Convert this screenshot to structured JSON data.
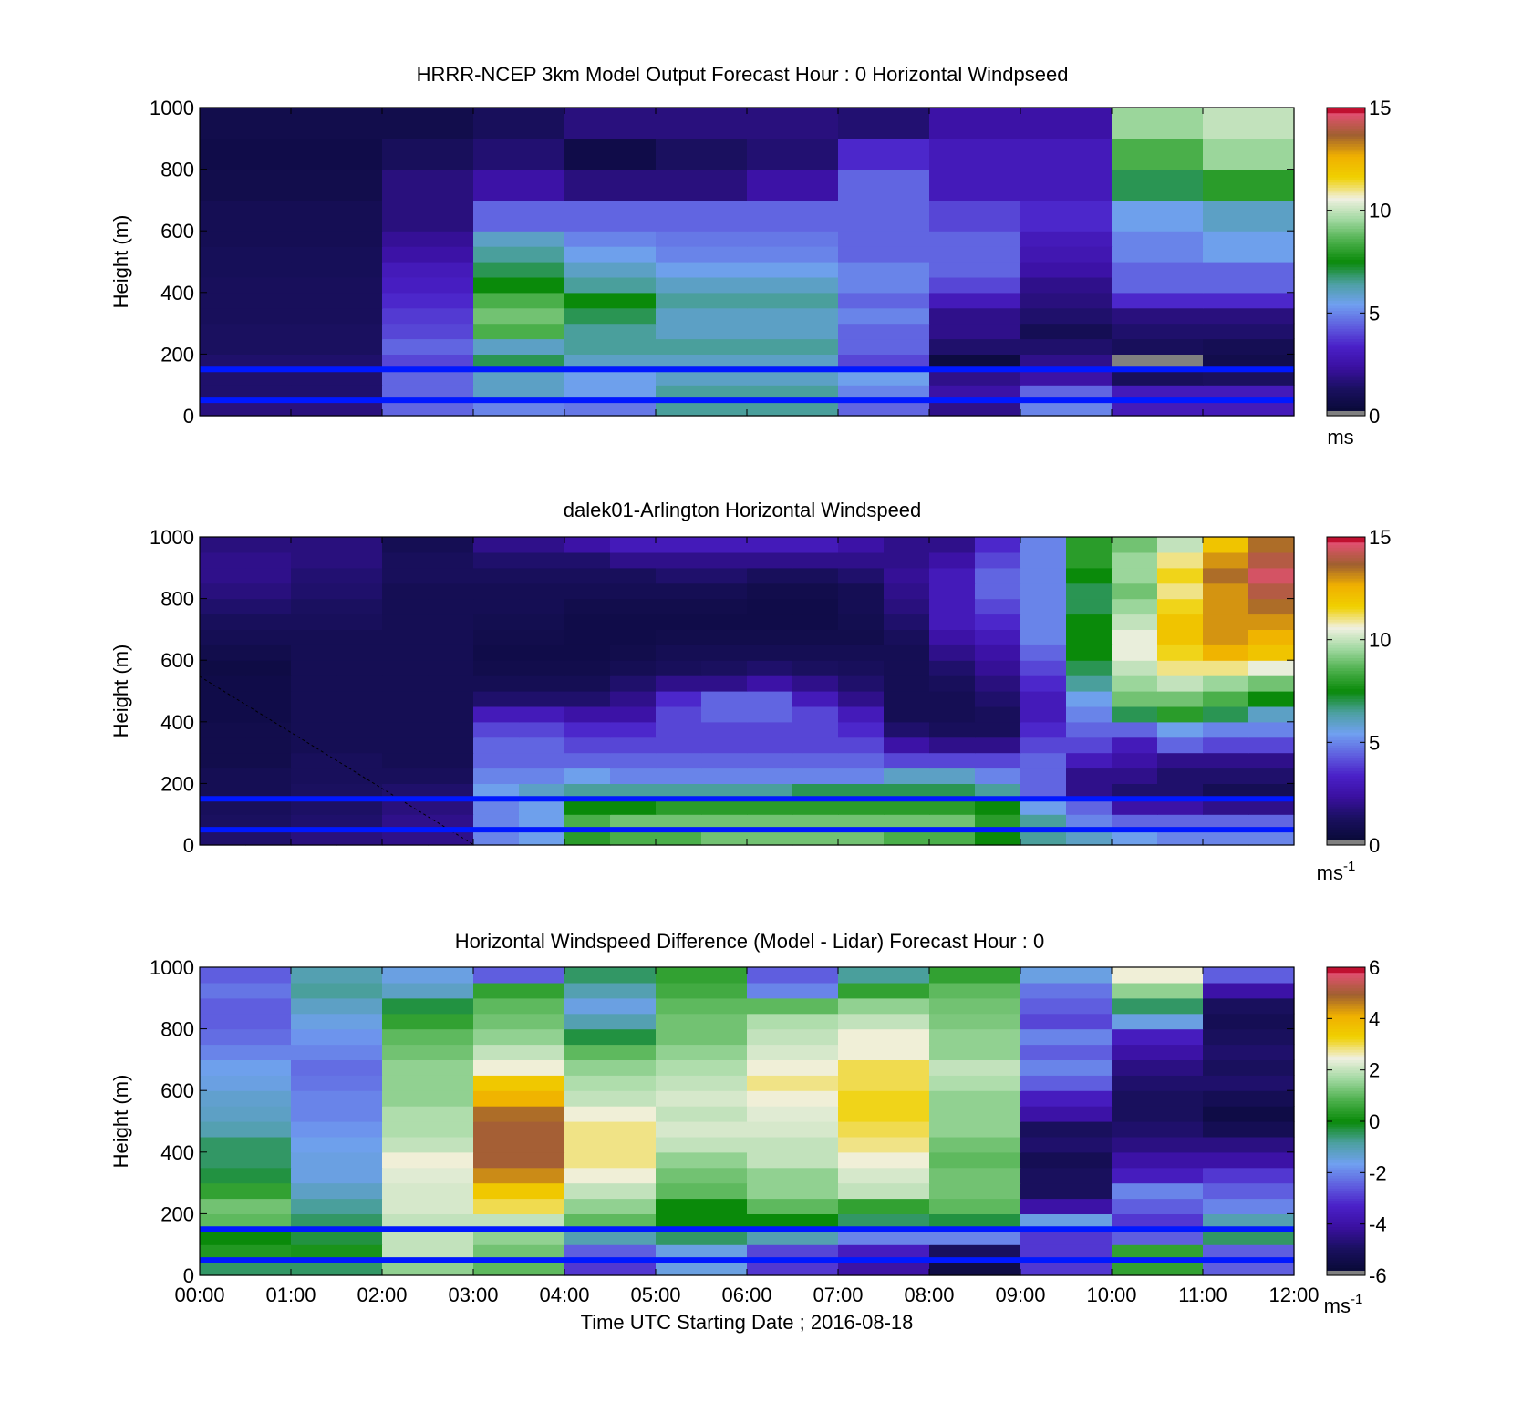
{
  "figure": {
    "xlabel": "Time UTC  Starting Date ; 2016-08-18",
    "x_tick_labels": [
      "00:00",
      "01:00",
      "02:00",
      "03:00",
      "04:00",
      "05:00",
      "06:00",
      "07:00",
      "08:00",
      "09:00",
      "10:00",
      "11:00",
      "12:00"
    ]
  },
  "colormap": [
    "#808080",
    "#0a0a3a",
    "#1a1060",
    "#3a10a0",
    "#4a20c8",
    "#6060e0",
    "#70a0f0",
    "#4ca0a0",
    "#0a8a0a",
    "#4cb04c",
    "#a0d8a0",
    "#f0f0e0",
    "#f0d000",
    "#f0b000",
    "#a06030",
    "#e05070",
    "#c01030"
  ],
  "chart_data": [
    {
      "type": "heatmap",
      "title": "HRRR-NCEP 3km Model Output   Forecast Hour : 0 Horizontal Windpseed",
      "ylabel": "Height (m)",
      "xlim": [
        0,
        12
      ],
      "ylim": [
        0,
        1000
      ],
      "y_ticks": [
        0,
        200,
        400,
        600,
        800,
        1000
      ],
      "colorbar": {
        "ticks": [
          0,
          5,
          10,
          15
        ],
        "range": [
          0,
          15
        ],
        "unit": "ms"
      },
      "overlay_lines_height_m": [
        50,
        150
      ],
      "overlay_line_color": "#0018ff",
      "time_bins_hours": [
        0,
        1,
        2,
        3,
        4,
        5,
        6,
        7,
        8,
        9,
        10,
        11,
        12
      ],
      "height_bins_m": [
        0,
        50,
        100,
        150,
        200,
        250,
        300,
        350,
        400,
        450,
        500,
        550,
        600,
        700,
        800,
        900,
        1000
      ],
      "values": [
        [
          1.8,
          1.8,
          4.5,
          5.0,
          4.8,
          6.5,
          6.5,
          4.5,
          2.0,
          5.0,
          3.0,
          3.0
        ],
        [
          1.5,
          1.5,
          4.5,
          6.0,
          5.5,
          6.5,
          6.5,
          5.0,
          2.5,
          4.5,
          3.0,
          3.0
        ],
        [
          1.5,
          1.5,
          4.5,
          6.0,
          5.5,
          6.0,
          6.0,
          5.5,
          2.0,
          2.5,
          1.2,
          1.3
        ],
        [
          1.5,
          1.5,
          4.0,
          7.0,
          6.0,
          6.0,
          6.0,
          4.0,
          0.5,
          2.0,
          0.3,
          0.8
        ],
        [
          1.3,
          1.3,
          4.5,
          6.0,
          6.5,
          6.5,
          6.5,
          4.5,
          1.5,
          1.5,
          1.2,
          1.0
        ],
        [
          1.3,
          1.3,
          4.0,
          8.5,
          6.5,
          6.0,
          6.0,
          4.5,
          2.0,
          1.0,
          1.5,
          1.5
        ],
        [
          1.2,
          1.2,
          3.8,
          9.0,
          7.0,
          6.0,
          6.0,
          5.0,
          2.0,
          1.5,
          1.8,
          1.8
        ],
        [
          1.2,
          1.2,
          3.5,
          8.5,
          7.5,
          6.5,
          6.5,
          4.5,
          3.0,
          1.8,
          3.5,
          3.5
        ],
        [
          1.2,
          1.2,
          3.2,
          7.5,
          6.5,
          6.0,
          6.0,
          5.0,
          4.0,
          2.0,
          4.5,
          4.5
        ],
        [
          1.1,
          1.1,
          3.0,
          7.0,
          6.0,
          5.5,
          5.5,
          5.0,
          4.5,
          2.5,
          4.5,
          4.5
        ],
        [
          1.1,
          1.1,
          2.5,
          6.5,
          5.5,
          5.0,
          5.0,
          4.5,
          4.5,
          2.8,
          5.0,
          5.5
        ],
        [
          1.0,
          1.0,
          2.2,
          6.0,
          5.0,
          4.8,
          4.8,
          4.5,
          4.5,
          3.0,
          5.0,
          5.5
        ],
        [
          1.0,
          1.0,
          1.8,
          4.5,
          4.5,
          4.5,
          4.5,
          4.5,
          4.0,
          3.5,
          5.5,
          6.0
        ],
        [
          0.8,
          0.8,
          1.8,
          2.5,
          1.8,
          1.8,
          2.5,
          4.5,
          3.0,
          3.0,
          7.0,
          8.0
        ],
        [
          0.7,
          0.7,
          1.2,
          1.6,
          0.7,
          1.3,
          1.6,
          3.5,
          3.0,
          3.0,
          8.5,
          9.5
        ],
        [
          0.8,
          0.8,
          0.8,
          1.2,
          1.8,
          1.8,
          1.8,
          1.6,
          2.5,
          2.5,
          9.5,
          10.0
        ]
      ]
    },
    {
      "type": "heatmap",
      "title": "dalek01-Arlington  Horizontal Windspeed",
      "ylabel": "Height (m)",
      "xlim": [
        0,
        12
      ],
      "ylim": [
        0,
        1000
      ],
      "y_ticks": [
        0,
        200,
        400,
        600,
        800,
        1000
      ],
      "colorbar": {
        "ticks": [
          0,
          5,
          10,
          15
        ],
        "range": [
          0,
          15
        ],
        "unit": "ms-1"
      },
      "overlay_lines_height_m": [
        50,
        150
      ],
      "overlay_line_color": "#0018ff",
      "time_bins_hours": [
        0,
        0.5,
        1,
        1.5,
        2,
        2.5,
        3,
        3.5,
        4,
        4.5,
        5,
        5.5,
        6,
        6.5,
        7,
        7.5,
        8,
        8.5,
        9,
        9.5,
        10,
        10.5,
        11,
        11.5,
        12
      ],
      "height_bins_m": [
        0,
        50,
        100,
        150,
        200,
        250,
        300,
        350,
        400,
        450,
        500,
        550,
        600,
        650,
        700,
        750,
        800,
        850,
        900,
        950,
        1000
      ],
      "values": [
        [
          1.5,
          1.5,
          1.8,
          1.8,
          2.0,
          2.0,
          5.0,
          5.5,
          8.0,
          8.5,
          8.5,
          9.0,
          9.0,
          9.0,
          9.0,
          8.5,
          8.5,
          7.5,
          6.5,
          6.0,
          5.5,
          5.0,
          5.0,
          5.0
        ],
        [
          1.3,
          1.3,
          1.5,
          1.5,
          2.0,
          2.0,
          5.0,
          5.5,
          8.5,
          9.0,
          9.0,
          9.0,
          9.0,
          9.0,
          9.0,
          9.0,
          9.0,
          8.0,
          6.5,
          5.0,
          4.5,
          4.5,
          4.5,
          4.5
        ],
        [
          1.2,
          1.2,
          1.4,
          1.4,
          1.8,
          1.8,
          5.0,
          5.5,
          7.5,
          7.5,
          8.0,
          8.0,
          8.0,
          8.0,
          8.0,
          8.0,
          8.0,
          7.5,
          5.5,
          4.5,
          2.5,
          2.5,
          2.0,
          2.0
        ],
        [
          1.0,
          1.0,
          1.3,
          1.3,
          1.5,
          1.5,
          5.5,
          6.0,
          6.5,
          6.5,
          6.5,
          6.5,
          6.5,
          7.0,
          7.0,
          7.0,
          7.0,
          6.5,
          4.5,
          2.0,
          1.5,
          1.5,
          1.0,
          1.0
        ],
        [
          1.0,
          1.0,
          1.2,
          1.2,
          1.2,
          1.2,
          5.0,
          5.0,
          5.5,
          5.0,
          5.0,
          5.0,
          5.0,
          5.0,
          5.0,
          6.0,
          6.0,
          5.0,
          4.5,
          2.0,
          2.0,
          1.5,
          1.5,
          1.5
        ],
        [
          0.8,
          0.8,
          1.2,
          1.2,
          1.0,
          1.0,
          4.5,
          4.5,
          4.5,
          4.5,
          4.5,
          4.5,
          4.5,
          4.5,
          4.5,
          4.0,
          4.0,
          4.0,
          4.5,
          3.0,
          2.5,
          2.0,
          2.0,
          2.0
        ],
        [
          0.8,
          0.8,
          1.0,
          1.0,
          1.0,
          1.0,
          4.5,
          4.5,
          4.0,
          4.0,
          4.0,
          4.0,
          4.0,
          4.0,
          4.0,
          2.5,
          2.0,
          2.0,
          4.0,
          4.0,
          3.0,
          4.5,
          4.0,
          4.0
        ],
        [
          0.8,
          0.8,
          1.0,
          1.0,
          1.0,
          1.0,
          4.0,
          4.0,
          3.5,
          3.5,
          4.0,
          4.0,
          4.0,
          4.0,
          3.5,
          1.5,
          1.2,
          1.2,
          3.5,
          4.5,
          4.5,
          5.5,
          5.0,
          5.0
        ],
        [
          0.7,
          0.7,
          1.0,
          1.0,
          1.0,
          1.0,
          3.0,
          3.0,
          2.5,
          2.5,
          4.0,
          4.5,
          4.5,
          4.0,
          3.0,
          1.0,
          1.0,
          1.2,
          3.0,
          5.0,
          7.0,
          8.0,
          7.0,
          6.0
        ],
        [
          0.7,
          0.7,
          1.0,
          1.0,
          1.0,
          1.0,
          1.5,
          1.5,
          1.5,
          2.0,
          3.5,
          4.5,
          4.5,
          3.0,
          2.0,
          1.0,
          1.0,
          1.5,
          3.0,
          5.5,
          9.0,
          9.0,
          8.5,
          7.5
        ],
        [
          0.7,
          0.7,
          1.0,
          1.0,
          1.0,
          1.0,
          1.0,
          1.0,
          1.0,
          1.5,
          2.0,
          2.0,
          2.5,
          2.0,
          1.5,
          1.0,
          1.2,
          1.8,
          3.5,
          6.5,
          9.5,
          10.0,
          9.5,
          9.0
        ],
        [
          0.6,
          0.6,
          1.0,
          1.0,
          1.0,
          1.0,
          0.8,
          0.8,
          0.8,
          1.0,
          1.2,
          1.3,
          1.5,
          1.3,
          1.2,
          1.0,
          1.5,
          2.2,
          4.0,
          7.0,
          10.0,
          11.0,
          11.0,
          10.5
        ],
        [
          0.8,
          0.8,
          1.0,
          1.0,
          1.0,
          1.0,
          0.7,
          0.7,
          0.7,
          0.8,
          1.0,
          1.0,
          1.0,
          1.0,
          1.0,
          1.0,
          2.0,
          2.5,
          4.5,
          7.5,
          10.5,
          11.5,
          12.5,
          12.0
        ],
        [
          1.0,
          1.0,
          1.0,
          1.0,
          1.0,
          1.0,
          0.8,
          0.8,
          0.7,
          0.7,
          0.8,
          0.8,
          0.8,
          0.8,
          0.8,
          1.2,
          2.5,
          3.0,
          5.0,
          7.5,
          10.5,
          12.0,
          13.0,
          12.5
        ],
        [
          1.2,
          1.2,
          1.2,
          1.2,
          1.0,
          1.0,
          0.9,
          0.9,
          0.7,
          0.7,
          0.7,
          0.7,
          0.7,
          0.7,
          0.9,
          1.5,
          3.0,
          3.5,
          5.0,
          7.5,
          10.0,
          12.0,
          13.0,
          13.0
        ],
        [
          1.5,
          1.5,
          1.3,
          1.3,
          1.0,
          1.0,
          1.0,
          1.0,
          0.8,
          0.8,
          0.8,
          0.8,
          0.7,
          0.7,
          1.0,
          1.8,
          3.0,
          4.0,
          5.0,
          7.0,
          9.5,
          11.5,
          13.0,
          13.5
        ],
        [
          1.8,
          1.8,
          1.5,
          1.5,
          1.0,
          1.0,
          1.0,
          1.0,
          1.0,
          1.0,
          1.0,
          1.0,
          0.8,
          0.8,
          1.0,
          2.0,
          3.0,
          4.5,
          5.0,
          7.0,
          9.0,
          11.0,
          13.0,
          14.0
        ],
        [
          2.0,
          2.0,
          1.6,
          1.6,
          1.2,
          1.2,
          1.2,
          1.2,
          1.2,
          1.2,
          1.5,
          1.5,
          1.2,
          1.2,
          1.5,
          2.2,
          3.0,
          4.5,
          5.0,
          7.5,
          9.5,
          11.5,
          13.5,
          14.5
        ],
        [
          2.0,
          2.0,
          1.8,
          1.8,
          1.2,
          1.2,
          1.5,
          1.5,
          1.5,
          2.0,
          2.0,
          2.0,
          2.0,
          2.0,
          2.0,
          2.0,
          2.5,
          4.0,
          5.0,
          8.0,
          9.5,
          11.0,
          13.0,
          14.0
        ],
        [
          1.8,
          1.8,
          1.8,
          1.8,
          1.0,
          1.0,
          2.0,
          2.0,
          2.5,
          3.0,
          3.0,
          3.0,
          3.0,
          3.0,
          2.5,
          2.0,
          2.0,
          3.5,
          5.0,
          8.0,
          9.0,
          10.0,
          12.0,
          13.5
        ]
      ]
    },
    {
      "type": "heatmap",
      "title": "Horizontal Windspeed Difference (Model - Lidar) Forecast Hour : 0",
      "ylabel": "Height (m)",
      "xlim": [
        0,
        12
      ],
      "ylim": [
        0,
        1000
      ],
      "y_ticks": [
        0,
        200,
        400,
        600,
        800,
        1000
      ],
      "colorbar": {
        "ticks": [
          -6,
          -4,
          -2,
          0,
          2,
          4,
          6
        ],
        "range": [
          -6,
          6
        ],
        "unit": "ms-1"
      },
      "overlay_lines_height_m": [
        50,
        150
      ],
      "overlay_line_color": "#0018ff",
      "time_bins_hours": [
        0,
        1,
        2,
        3,
        4,
        5,
        6,
        7,
        8,
        9,
        10,
        11,
        12
      ],
      "height_bins_m": [
        0,
        50,
        100,
        150,
        200,
        250,
        300,
        350,
        400,
        450,
        500,
        550,
        600,
        650,
        700,
        750,
        800,
        850,
        900,
        950,
        1000
      ],
      "values": [
        [
          -0.5,
          -0.5,
          1.5,
          1.0,
          -3.0,
          -1.5,
          -3.0,
          -4.0,
          -5.5,
          -3.0,
          0.5,
          -2.5
        ],
        [
          0.3,
          0.2,
          2.0,
          1.2,
          -2.5,
          -1.5,
          -2.8,
          -3.5,
          -5.0,
          -3.0,
          0.5,
          -2.5
        ],
        [
          0.0,
          -0.3,
          2.0,
          1.5,
          -1.0,
          -0.5,
          -1.0,
          -2.0,
          -2.0,
          -3.0,
          -2.5,
          -0.5
        ],
        [
          1.0,
          -0.5,
          2.0,
          2.0,
          1.0,
          0.0,
          0.0,
          -0.5,
          -0.3,
          -1.5,
          -3.0,
          -1.0
        ],
        [
          1.2,
          -0.8,
          2.2,
          3.0,
          1.5,
          0.0,
          1.0,
          0.5,
          1.0,
          -4.0,
          -2.5,
          -2.0
        ],
        [
          0.5,
          -1.2,
          2.2,
          3.5,
          2.0,
          1.0,
          1.5,
          2.0,
          1.2,
          -5.0,
          -2.0,
          -2.5
        ],
        [
          -0.3,
          -1.5,
          2.3,
          4.5,
          2.5,
          1.2,
          1.5,
          2.2,
          1.2,
          -5.0,
          -3.5,
          -3.0
        ],
        [
          -0.5,
          -1.5,
          2.5,
          5.0,
          2.8,
          1.5,
          2.0,
          2.5,
          1.0,
          -5.2,
          -4.0,
          -4.0
        ],
        [
          -0.5,
          -1.6,
          2.0,
          5.0,
          2.8,
          2.0,
          2.0,
          2.8,
          1.2,
          -4.8,
          -4.5,
          -4.5
        ],
        [
          -1.0,
          -1.8,
          1.8,
          5.0,
          2.8,
          2.2,
          2.2,
          3.0,
          1.5,
          -5.0,
          -4.8,
          -5.2
        ],
        [
          -1.2,
          -2.0,
          1.8,
          4.8,
          2.5,
          2.0,
          2.3,
          3.2,
          1.5,
          -4.0,
          -5.0,
          -5.5
        ],
        [
          -1.3,
          -2.0,
          1.5,
          4.0,
          2.0,
          2.2,
          2.5,
          3.2,
          1.5,
          -3.5,
          -5.0,
          -5.2
        ],
        [
          -1.5,
          -2.2,
          1.5,
          3.5,
          1.8,
          2.0,
          2.8,
          3.0,
          1.8,
          -2.5,
          -4.8,
          -4.8
        ],
        [
          -1.6,
          -2.3,
          1.5,
          2.5,
          1.5,
          1.8,
          2.5,
          3.0,
          2.0,
          -2.0,
          -4.5,
          -5.0
        ],
        [
          -2.0,
          -2.0,
          1.2,
          2.0,
          1.0,
          1.5,
          2.2,
          2.5,
          1.5,
          -2.5,
          -4.0,
          -4.8
        ],
        [
          -2.3,
          -1.8,
          1.0,
          1.5,
          -0.3,
          1.2,
          2.0,
          2.5,
          1.5,
          -2.0,
          -3.5,
          -5.0
        ],
        [
          -2.5,
          -1.5,
          0.5,
          1.2,
          -1.0,
          1.2,
          1.8,
          2.0,
          1.3,
          -2.8,
          -1.5,
          -5.2
        ],
        [
          -2.5,
          -1.2,
          -0.3,
          1.0,
          -1.5,
          1.0,
          1.0,
          1.5,
          1.2,
          -2.5,
          -0.5,
          -5.0
        ],
        [
          -2.2,
          -0.8,
          -1.2,
          0.5,
          -1.0,
          0.7,
          -2.0,
          0.5,
          1.0,
          -2.2,
          1.5,
          -4.0
        ],
        [
          -2.5,
          -1.0,
          -1.5,
          -2.5,
          -0.5,
          0.5,
          -2.5,
          -0.8,
          0.5,
          -1.5,
          2.5,
          -2.5
        ]
      ]
    }
  ]
}
